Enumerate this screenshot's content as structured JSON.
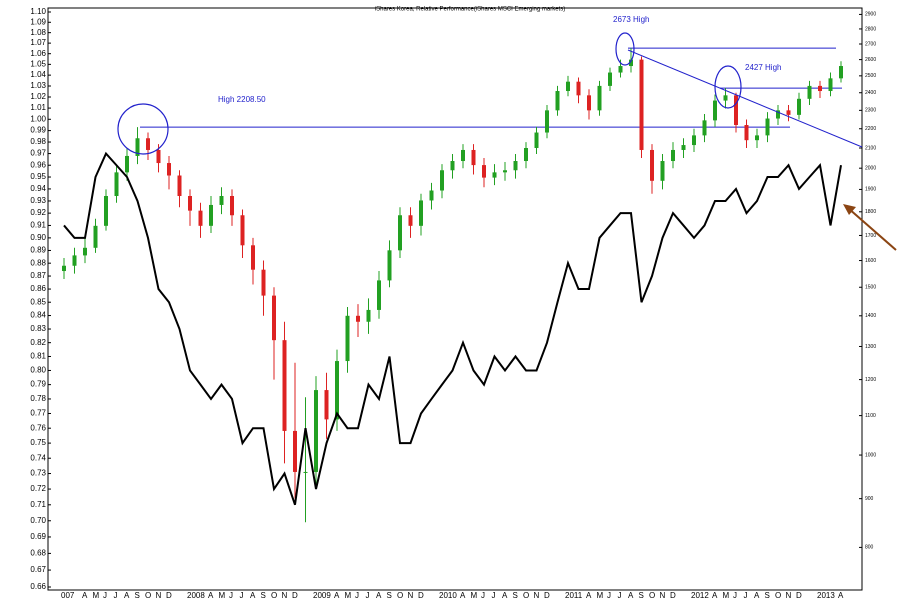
{
  "chart_data": {
    "type": "candlestick",
    "title": "iShares Korea, Relative Performance(iShares MSCI Emerging markets)",
    "categories": [
      "007",
      null,
      "A",
      "M",
      "J",
      "J",
      "A",
      "S",
      "O",
      "N",
      "D",
      null,
      "2008",
      null,
      "A",
      "M",
      "J",
      "J",
      "A",
      "S",
      "O",
      "N",
      "D",
      null,
      "2009",
      null,
      "A",
      "M",
      "J",
      "J",
      "A",
      "S",
      "O",
      "N",
      "D",
      null,
      "2010",
      null,
      "A",
      "M",
      "J",
      "J",
      "A",
      "S",
      "O",
      "N",
      "D",
      null,
      "2011",
      null,
      "A",
      "M",
      "J",
      "J",
      "A",
      "S",
      "O",
      "N",
      "D",
      null,
      "2012",
      null,
      "A",
      "M",
      "J",
      "J",
      "A",
      "S",
      "O",
      "N",
      "D",
      null,
      "2013",
      null,
      "A"
    ],
    "candles": {
      "axis": "y2",
      "up_color": "#22a022",
      "down_color": "#dd2222",
      "open": [
        1560,
        1580,
        1620,
        1650,
        1740,
        1870,
        1980,
        2060,
        2150,
        2090,
        2025,
        1965,
        1870,
        1805,
        1740,
        1830,
        1870,
        1785,
        1660,
        1565,
        1470,
        1320,
        1060,
        960,
        960,
        1170,
        1090,
        1255,
        1400,
        1380,
        1420,
        1525,
        1640,
        1785,
        1740,
        1850,
        1895,
        1990,
        2035,
        2090,
        2015,
        1955,
        1980,
        1990,
        2035,
        2100,
        2180,
        2300,
        2410,
        2465,
        2385,
        2300,
        2440,
        2520,
        2560,
        2600,
        2090,
        1940,
        2035,
        2090,
        2115,
        2165,
        2245,
        2355,
        2385,
        2220,
        2140,
        2165,
        2255,
        2300,
        2275,
        2365,
        2440,
        2410,
        2485
      ],
      "high": [
        1610,
        1650,
        1690,
        1770,
        1900,
        2010,
        2100,
        2208.5,
        2180,
        2120,
        2060,
        1990,
        1900,
        1840,
        1870,
        1910,
        1900,
        1810,
        1690,
        1600,
        1500,
        1380,
        1250,
        1150,
        1210,
        1220,
        1290,
        1430,
        1440,
        1460,
        1560,
        1680,
        1820,
        1820,
        1880,
        1930,
        2020,
        2070,
        2120,
        2120,
        2050,
        2020,
        2030,
        2070,
        2130,
        2210,
        2330,
        2440,
        2500,
        2490,
        2420,
        2470,
        2550,
        2600,
        2673,
        2620,
        2120,
        2070,
        2130,
        2150,
        2200,
        2280,
        2390,
        2427,
        2400,
        2250,
        2200,
        2290,
        2330,
        2330,
        2400,
        2470,
        2470,
        2520,
        2590
      ],
      "low": [
        1530,
        1550,
        1590,
        1630,
        1720,
        1840,
        1940,
        2020,
        2040,
        1980,
        1900,
        1820,
        1740,
        1690,
        1710,
        1790,
        1740,
        1610,
        1510,
        1400,
        1200,
        980,
        900,
        850,
        930,
        1040,
        1060,
        1220,
        1330,
        1340,
        1390,
        1500,
        1610,
        1690,
        1700,
        1810,
        1860,
        1950,
        2000,
        1970,
        1910,
        1920,
        1940,
        1950,
        2000,
        2070,
        2150,
        2270,
        2380,
        2340,
        2250,
        2270,
        2410,
        2490,
        2520,
        2050,
        1880,
        1900,
        2000,
        2050,
        2080,
        2130,
        2210,
        2310,
        2180,
        2100,
        2100,
        2130,
        2220,
        2240,
        2250,
        2330,
        2370,
        2380,
        2460
      ],
      "close": [
        1580,
        1620,
        1650,
        1740,
        1870,
        1980,
        2060,
        2150,
        2090,
        2025,
        1965,
        1870,
        1805,
        1740,
        1830,
        1870,
        1785,
        1660,
        1565,
        1470,
        1320,
        1060,
        960,
        960,
        1170,
        1090,
        1255,
        1400,
        1380,
        1420,
        1525,
        1640,
        1785,
        1740,
        1850,
        1895,
        1990,
        2035,
        2090,
        2015,
        1955,
        1980,
        1990,
        2035,
        2100,
        2180,
        2300,
        2410,
        2465,
        2385,
        2300,
        2440,
        2520,
        2560,
        2600,
        2090,
        1940,
        2035,
        2090,
        2115,
        2165,
        2245,
        2355,
        2385,
        2220,
        2140,
        2165,
        2255,
        2300,
        2275,
        2365,
        2440,
        2410,
        2485,
        2560
      ]
    },
    "line": {
      "color": "#000000",
      "values": [
        0.91,
        0.9,
        0.9,
        0.95,
        0.97,
        0.96,
        0.95,
        0.93,
        0.9,
        0.86,
        0.85,
        0.83,
        0.8,
        0.79,
        0.78,
        0.79,
        0.78,
        0.75,
        0.76,
        0.76,
        0.72,
        0.73,
        0.71,
        0.76,
        0.72,
        0.75,
        0.77,
        0.76,
        0.76,
        0.79,
        0.78,
        0.81,
        0.75,
        0.75,
        0.77,
        0.78,
        0.79,
        0.8,
        0.82,
        0.8,
        0.79,
        0.81,
        0.8,
        0.81,
        0.8,
        0.8,
        0.82,
        0.85,
        0.88,
        0.86,
        0.86,
        0.9,
        0.91,
        0.92,
        0.92,
        0.85,
        0.87,
        0.9,
        0.92,
        0.91,
        0.9,
        0.91,
        0.93,
        0.93,
        0.94,
        0.92,
        0.93,
        0.95,
        0.95,
        0.96,
        0.94,
        0.95,
        0.96,
        0.91,
        0.96
      ]
    },
    "levels": [
      {
        "label": "High 2208.50",
        "value": 2208.5
      },
      {
        "label": "2673 High",
        "value": 2673
      },
      {
        "label": "2427 High",
        "value": 2427
      }
    ],
    "level_color": "#2222cc",
    "ylim": [
      0.66,
      1.1
    ],
    "log_scale": true,
    "yticks": [
      0.66,
      0.67,
      0.68,
      0.69,
      {
        "value": 0.7,
        "label": "0.70"
      },
      0.71,
      0.72,
      0.73,
      0.74,
      0.75,
      0.76,
      0.77,
      0.78,
      0.79,
      {
        "value": 0.8,
        "label": "0.80"
      },
      0.81,
      0.82,
      0.83,
      0.84,
      0.85,
      0.86,
      0.87,
      0.88,
      0.89,
      {
        "value": 0.9,
        "label": "0.90"
      },
      0.91,
      0.92,
      0.93,
      0.94,
      0.95,
      0.96,
      0.97,
      0.98,
      0.99,
      {
        "value": 1,
        "label": "1.00"
      },
      1.01,
      1.02,
      1.03,
      1.04,
      1.05,
      1.06,
      1.07,
      1.08,
      1.09,
      {
        "value": 1.1,
        "label": "1.10"
      }
    ],
    "y2lim": [
      727,
      2917
    ],
    "y2_log_scale": true,
    "y2ticks": [
      800,
      900,
      1000,
      1100,
      1200,
      1300,
      1400,
      1500,
      1600,
      1700,
      1800,
      1900,
      2000,
      2100,
      2200,
      2300,
      2400,
      2500,
      2600,
      2700,
      2800,
      2900
    ]
  }
}
